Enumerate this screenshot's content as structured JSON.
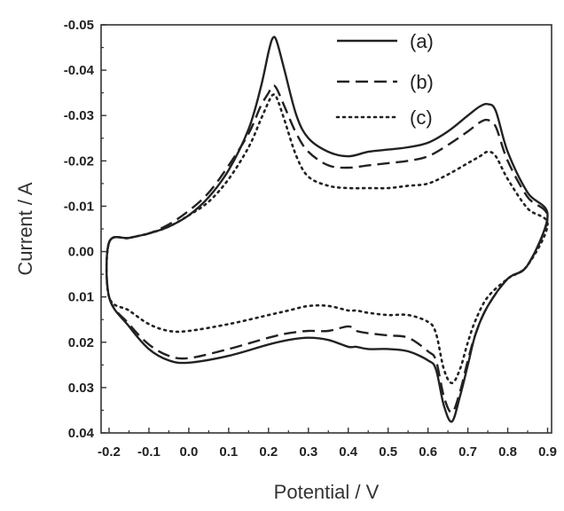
{
  "chart_data": {
    "type": "line",
    "title": "",
    "xlabel": "Potential / V",
    "ylabel": "Current / A",
    "xlim": [
      -0.22,
      0.91
    ],
    "ylim": [
      -0.05,
      0.04
    ],
    "y_axis_inverted": true,
    "grid": false,
    "legend_position": "top-right",
    "x_ticks": [
      "-0.2",
      "-0.1",
      "0.0",
      "0.1",
      "0.2",
      "0.3",
      "0.4",
      "0.5",
      "0.6",
      "0.7",
      "0.8",
      "0.9"
    ],
    "y_ticks": [
      "-0.05",
      "-0.04",
      "-0.03",
      "-0.02",
      "-0.01",
      "0.00",
      "0.01",
      "0.02",
      "0.03",
      "0.04"
    ],
    "series": [
      {
        "name": "(a)",
        "line_style": "solid",
        "color": "#222222",
        "x": [
          -0.2,
          -0.15,
          -0.1,
          -0.05,
          0.0,
          0.05,
          0.1,
          0.15,
          0.18,
          0.2,
          0.21,
          0.22,
          0.24,
          0.27,
          0.3,
          0.35,
          0.4,
          0.45,
          0.5,
          0.55,
          0.6,
          0.65,
          0.7,
          0.73,
          0.75,
          0.77,
          0.8,
          0.85,
          0.9,
          0.85,
          0.8,
          0.75,
          0.72,
          0.7,
          0.68,
          0.66,
          0.64,
          0.62,
          0.6,
          0.55,
          0.5,
          0.45,
          0.42,
          0.4,
          0.35,
          0.3,
          0.25,
          0.2,
          0.1,
          0.0,
          -0.05,
          -0.1,
          -0.15,
          -0.2
        ],
        "y": [
          -0.002,
          -0.003,
          -0.004,
          -0.0055,
          -0.008,
          -0.012,
          -0.018,
          -0.027,
          -0.036,
          -0.044,
          -0.047,
          -0.0465,
          -0.04,
          -0.03,
          -0.025,
          -0.022,
          -0.021,
          -0.022,
          -0.0225,
          -0.023,
          -0.024,
          -0.0265,
          -0.03,
          -0.032,
          -0.0325,
          -0.031,
          -0.022,
          -0.013,
          -0.008,
          0.003,
          0.006,
          0.012,
          0.018,
          0.025,
          0.032,
          0.0375,
          0.034,
          0.026,
          0.024,
          0.022,
          0.0215,
          0.0215,
          0.021,
          0.021,
          0.0195,
          0.019,
          0.0195,
          0.0205,
          0.023,
          0.0245,
          0.024,
          0.0215,
          0.0165,
          0.01
        ]
      },
      {
        "name": "(b)",
        "line_style": "dashed",
        "color": "#222222",
        "x": [
          -0.2,
          -0.15,
          -0.1,
          -0.05,
          0.0,
          0.05,
          0.1,
          0.15,
          0.18,
          0.2,
          0.21,
          0.22,
          0.24,
          0.27,
          0.3,
          0.35,
          0.4,
          0.45,
          0.5,
          0.55,
          0.6,
          0.65,
          0.7,
          0.73,
          0.75,
          0.77,
          0.8,
          0.85,
          0.9,
          0.85,
          0.8,
          0.75,
          0.72,
          0.7,
          0.68,
          0.66,
          0.64,
          0.62,
          0.6,
          0.55,
          0.5,
          0.45,
          0.42,
          0.4,
          0.35,
          0.3,
          0.25,
          0.2,
          0.1,
          0.0,
          -0.05,
          -0.1,
          -0.15,
          -0.2
        ],
        "y": [
          -0.002,
          -0.003,
          -0.004,
          -0.006,
          -0.009,
          -0.013,
          -0.019,
          -0.026,
          -0.032,
          -0.035,
          -0.0365,
          -0.036,
          -0.032,
          -0.026,
          -0.022,
          -0.019,
          -0.0185,
          -0.019,
          -0.0195,
          -0.02,
          -0.021,
          -0.0235,
          -0.0265,
          -0.0285,
          -0.029,
          -0.0275,
          -0.02,
          -0.012,
          -0.0075,
          0.003,
          0.006,
          0.012,
          0.018,
          0.024,
          0.031,
          0.0355,
          0.032,
          0.024,
          0.022,
          0.019,
          0.0185,
          0.018,
          0.0175,
          0.0165,
          0.0175,
          0.0175,
          0.018,
          0.019,
          0.0215,
          0.0235,
          0.023,
          0.0205,
          0.016,
          0.01
        ]
      },
      {
        "name": "(c)",
        "line_style": "dotted",
        "color": "#222222",
        "x": [
          -0.2,
          -0.15,
          -0.1,
          -0.05,
          0.0,
          0.05,
          0.1,
          0.15,
          0.18,
          0.2,
          0.21,
          0.22,
          0.24,
          0.27,
          0.3,
          0.35,
          0.4,
          0.45,
          0.5,
          0.55,
          0.6,
          0.65,
          0.7,
          0.73,
          0.75,
          0.77,
          0.8,
          0.85,
          0.9,
          0.85,
          0.8,
          0.75,
          0.72,
          0.7,
          0.68,
          0.66,
          0.64,
          0.62,
          0.6,
          0.55,
          0.5,
          0.45,
          0.42,
          0.4,
          0.35,
          0.3,
          0.25,
          0.2,
          0.1,
          0.0,
          -0.05,
          -0.1,
          -0.15,
          -0.2
        ],
        "y": [
          -0.002,
          -0.003,
          -0.004,
          -0.0055,
          -0.008,
          -0.011,
          -0.016,
          -0.023,
          -0.029,
          -0.033,
          -0.0345,
          -0.034,
          -0.029,
          -0.021,
          -0.0165,
          -0.0145,
          -0.014,
          -0.014,
          -0.014,
          -0.0145,
          -0.015,
          -0.017,
          -0.0195,
          -0.021,
          -0.022,
          -0.021,
          -0.016,
          -0.0095,
          -0.006,
          0.003,
          0.006,
          0.01,
          0.015,
          0.02,
          0.026,
          0.029,
          0.026,
          0.018,
          0.0155,
          0.014,
          0.014,
          0.0135,
          0.013,
          0.013,
          0.012,
          0.012,
          0.013,
          0.014,
          0.016,
          0.0175,
          0.0175,
          0.016,
          0.013,
          0.01
        ]
      }
    ]
  }
}
